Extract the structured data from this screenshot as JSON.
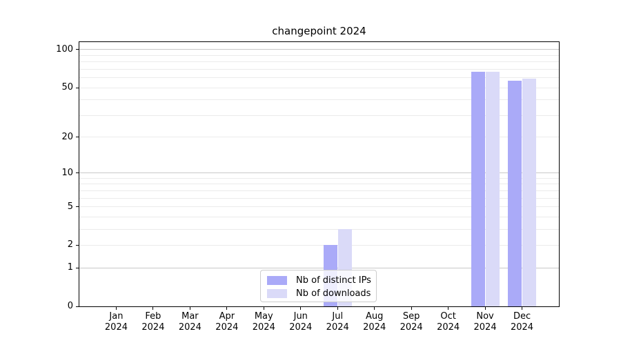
{
  "chart_data": {
    "type": "bar",
    "title": "changepoint 2024",
    "scale": "log1p",
    "grid": true,
    "legend_position": "lower center",
    "year": "2024",
    "categories": [
      "Jan",
      "Feb",
      "Mar",
      "Apr",
      "May",
      "Jun",
      "Jul",
      "Aug",
      "Sep",
      "Oct",
      "Nov",
      "Dec"
    ],
    "series": [
      {
        "name": "Nb of distinct IPs",
        "color": "#aaaaf8",
        "values": [
          0,
          0,
          0,
          0,
          0,
          0,
          2,
          0,
          0,
          0,
          67,
          57
        ]
      },
      {
        "name": "Nb of downloads",
        "color": "#dadaf8",
        "values": [
          0,
          0,
          0,
          0,
          0,
          0,
          3,
          0,
          0,
          0,
          67,
          59
        ]
      }
    ],
    "y_axis": {
      "ticks": [
        0,
        1,
        2,
        5,
        10,
        20,
        50,
        100
      ],
      "major_gridlines": [
        1,
        10,
        100
      ],
      "minor_gridlines": [
        2,
        3,
        4,
        5,
        6,
        7,
        8,
        9,
        20,
        30,
        40,
        50,
        60,
        70,
        80,
        90
      ],
      "ylim": [
        0,
        114.7
      ]
    },
    "colors": {
      "major_grid": "#c8c8c8",
      "minor_grid": "#ebebeb",
      "spine": "#000000",
      "background": "#ffffff"
    }
  }
}
